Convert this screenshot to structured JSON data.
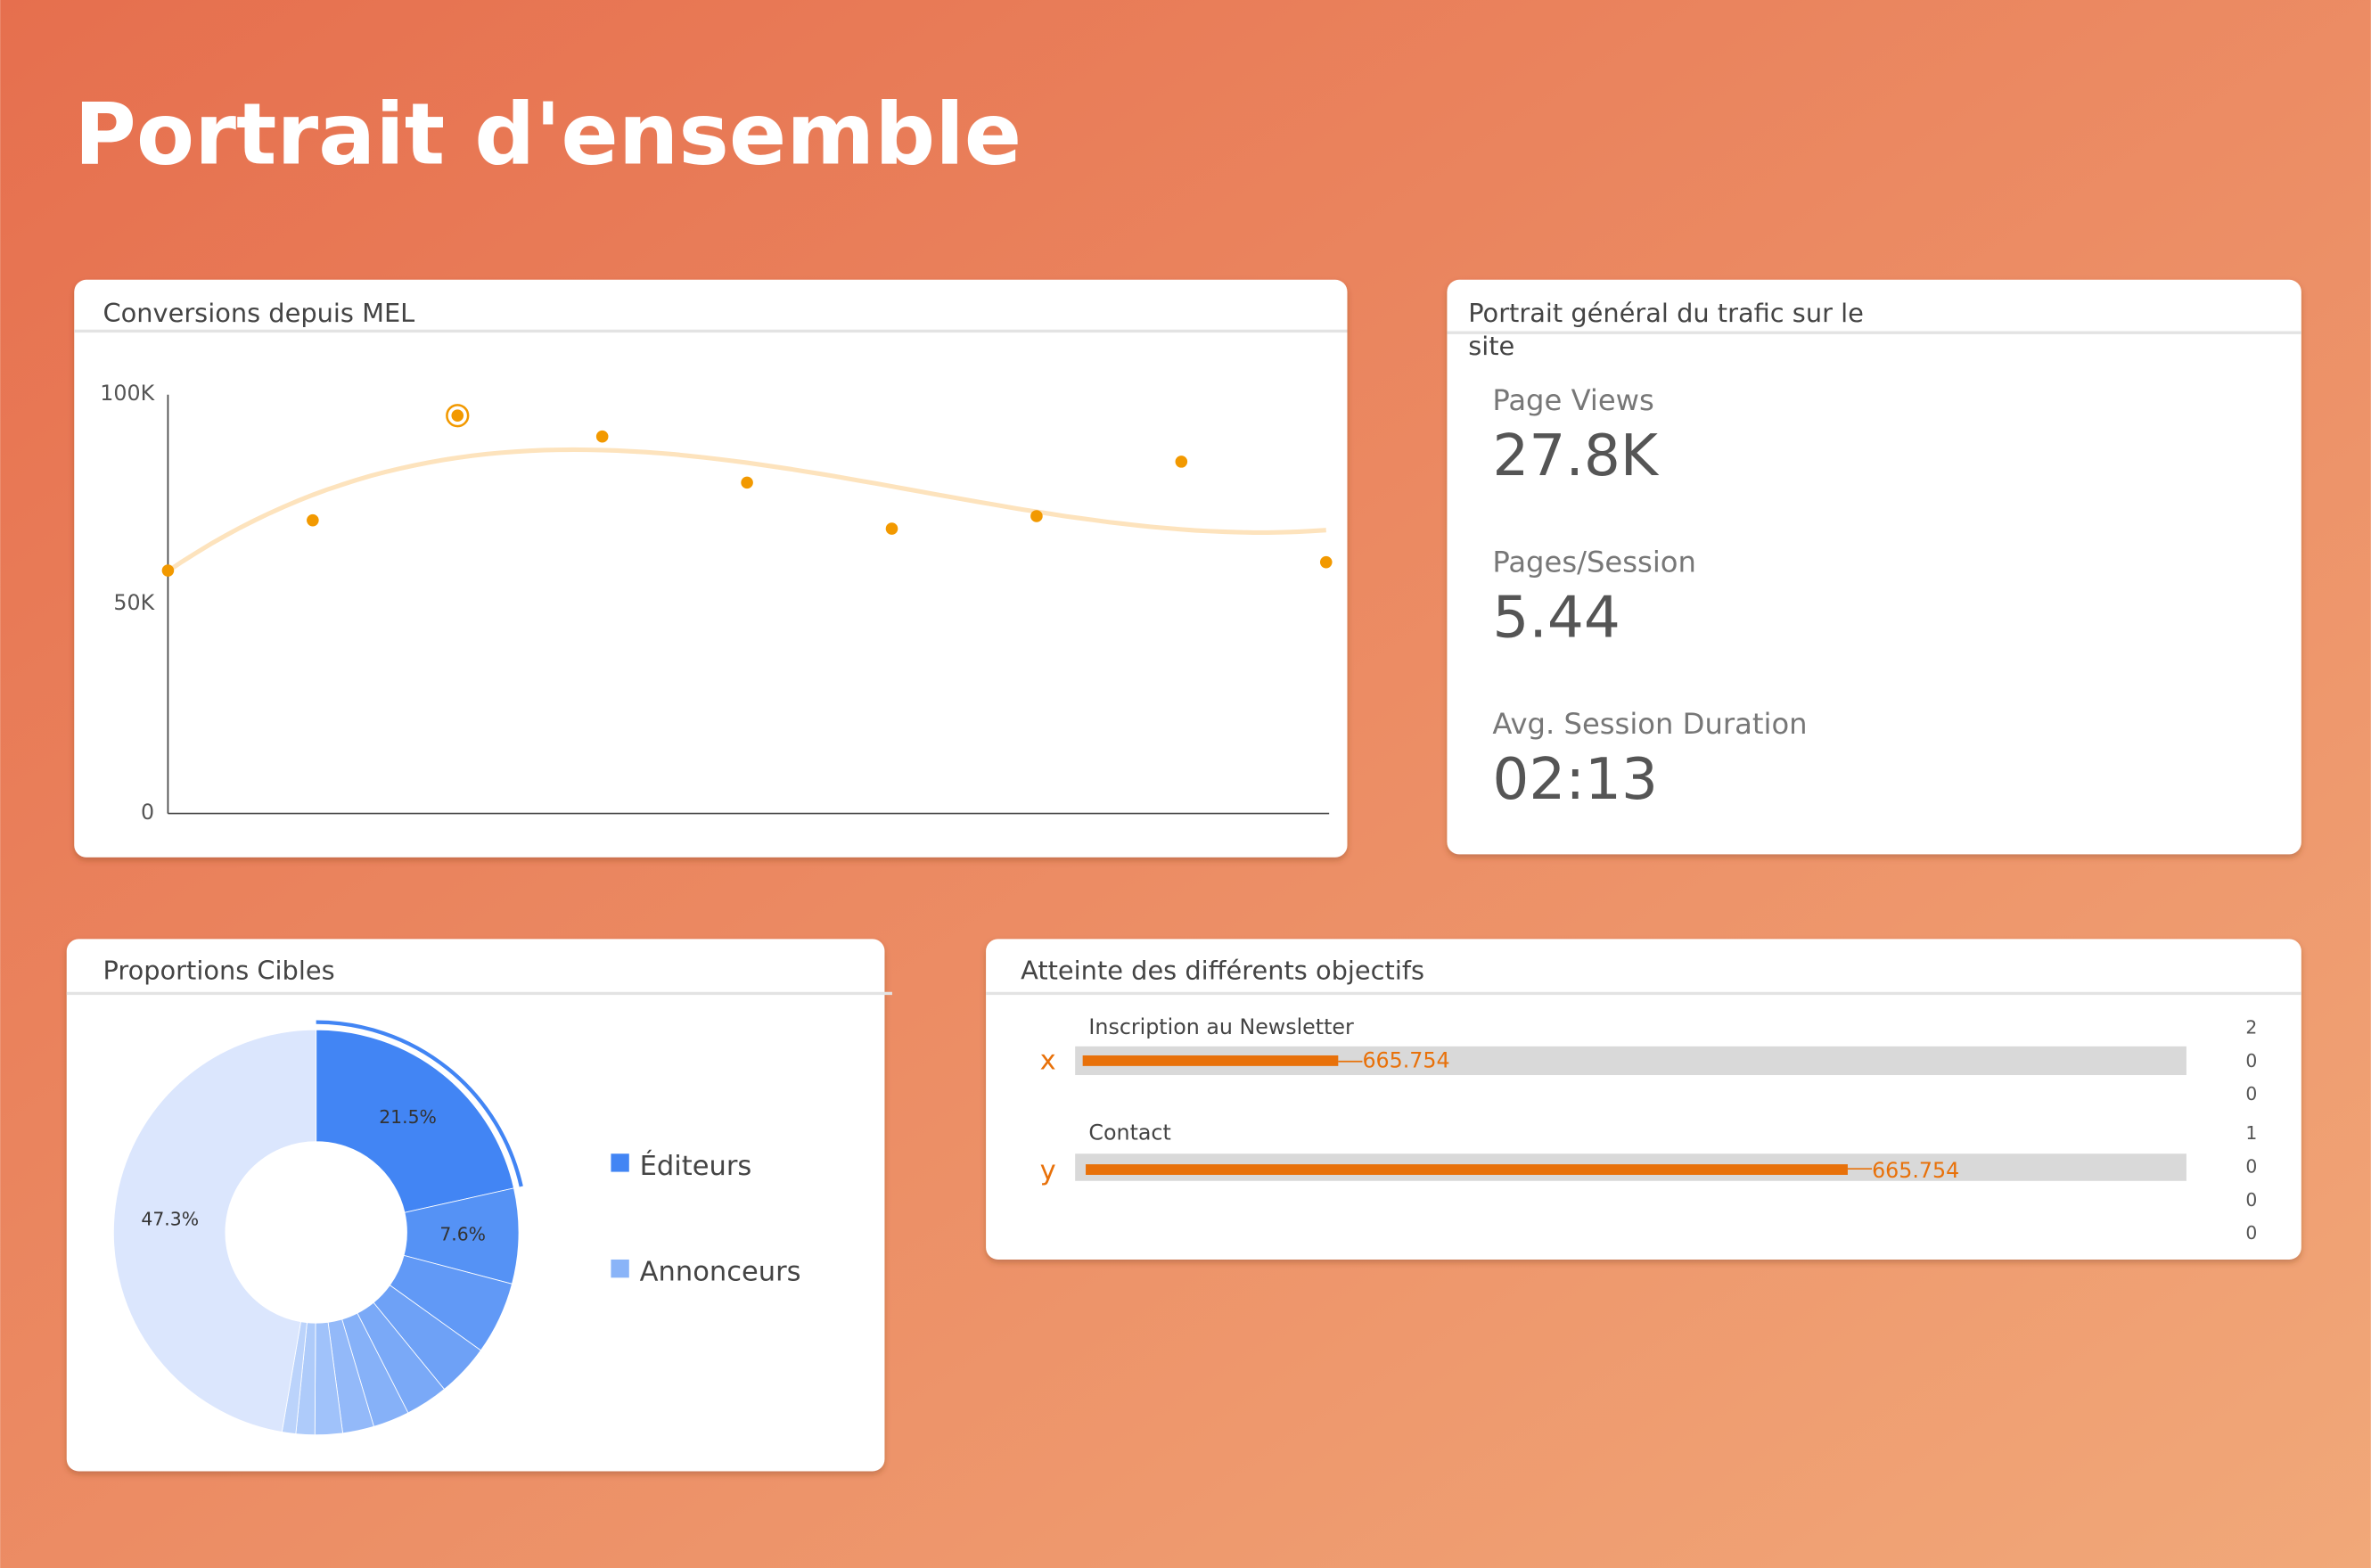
{
  "header": {
    "title": "Portrait d'ensemble"
  },
  "conversions": {
    "type": "scatter",
    "title": "Conversions depuis MEL",
    "values": [
      58000,
      70000,
      95000,
      90000,
      79000,
      68000,
      71000,
      84000,
      60000
    ],
    "ylim": [
      0,
      100000
    ],
    "yticks": [
      0,
      {
        "value": 50000,
        "label": "50K"
      },
      {
        "value": 100000,
        "label": "100K"
      }
    ],
    "color": "#f29900",
    "trendline": true
  },
  "traffic": {
    "title": "Portrait général du trafic sur le site",
    "metrics": [
      {
        "label": "Page Views",
        "value": "27.8K"
      },
      {
        "label": "Pages/Session",
        "value": "5.44"
      },
      {
        "label": "Avg. Session Duration",
        "value": "02:13"
      }
    ]
  },
  "targets": {
    "type": "donut",
    "title": "Proportions Cibles",
    "values": [
      21.5,
      7.6,
      5.8,
      4.2,
      3.4,
      2.9,
      2.5,
      2.2,
      1.5,
      1.1,
      47.3
    ],
    "value_labels": [
      "21.5%",
      "7.6%",
      null,
      null,
      null,
      null,
      null,
      null,
      null,
      null,
      "47.3%"
    ],
    "colors": [
      "#4285f4",
      "#5592f5",
      "#6199f6",
      "#6ea1f6",
      "#7aa9f7",
      "#86b1f8",
      "#93b9f9",
      "#a0c2fa",
      "#aecbfa",
      "#bbd3fb",
      "#dbe6fd"
    ],
    "legend": [
      {
        "name": "Éditeurs",
        "color": "#4285f4"
      },
      {
        "name": "Annonceurs",
        "color": "#8ab4f8"
      }
    ]
  },
  "objectives": {
    "title": "Atteinte des différents objectifs",
    "rows": [
      {
        "axis": "x",
        "name": "Inscription au Newsletter",
        "value_label": "665.754"
      },
      {
        "axis": "y",
        "name": "Contact",
        "value_label": "665.754"
      }
    ],
    "side_values": [
      "2",
      "0",
      "0",
      "1",
      "0",
      "0",
      "0"
    ]
  }
}
